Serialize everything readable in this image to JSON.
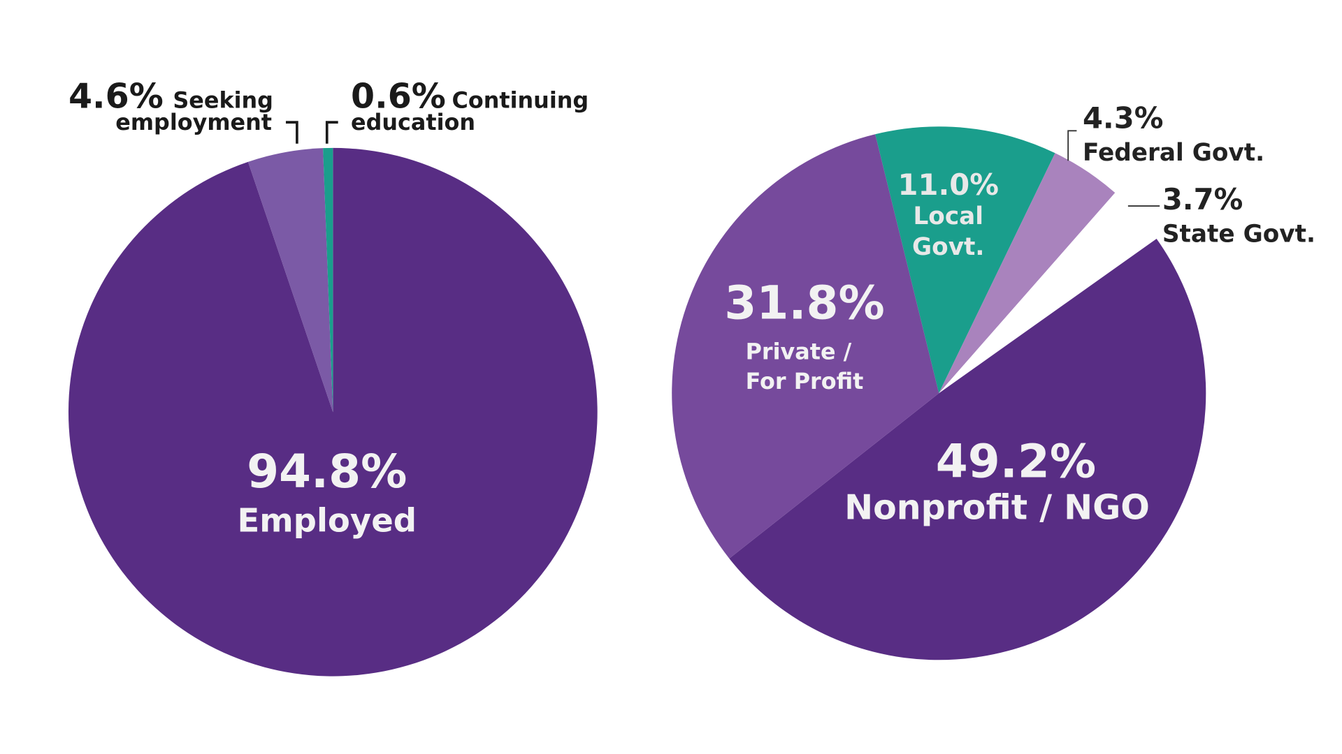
{
  "chart_data": [
    {
      "type": "pie",
      "title": "",
      "start_angle_deg": 0,
      "slices": [
        {
          "label": "Employed",
          "value": 94.8,
          "value_label": "94.8%",
          "color": "#582d84"
        },
        {
          "label": "Seeking employment",
          "label_line1": "Seeking",
          "label_line2": "employment",
          "value": 4.6,
          "value_label": "4.6%",
          "color": "#7b5aa6"
        },
        {
          "label": "Continuing education",
          "label_line1": "Continuing",
          "label_line2": "education",
          "value": 0.6,
          "value_label": "0.6%",
          "color": "#1a9e8c"
        }
      ]
    },
    {
      "type": "pie",
      "title": "",
      "start_angle_deg": -13.8,
      "slices": [
        {
          "label": "Local Govt.",
          "label_line1": "Local",
          "label_line2": "Govt.",
          "value": 11.0,
          "value_label": "11.0%",
          "color": "#1a9e8c"
        },
        {
          "label": "Federal Govt.",
          "value": 4.3,
          "value_label": "4.3%",
          "color": "#a983bd"
        },
        {
          "label": "State Govt.",
          "value": 3.7,
          "value_label": "3.7%",
          "color": "#ffffff"
        },
        {
          "label": "Nonprofit / NGO",
          "value": 49.2,
          "value_label": "49.2%",
          "color": "#582d84"
        },
        {
          "label": "Private / For Profit",
          "label_line1": "Private /",
          "label_line2": "For Profit",
          "value": 31.8,
          "value_label": "31.8%",
          "color": "#764a9c"
        }
      ]
    }
  ]
}
